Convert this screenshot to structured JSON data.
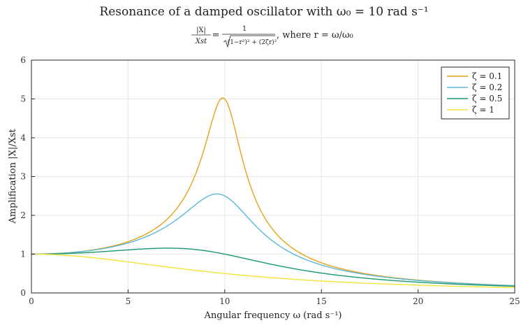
{
  "chart_data": {
    "type": "line",
    "title": "Resonance of a damped oscillator with ω₀ = 10 rad s⁻¹",
    "subtitle": {
      "lhs_num": "|X|",
      "lhs_den": "Xst",
      "rhs_num": "1",
      "rhs_den": "(1−r²)² + (2ζr)²",
      "suffix": ", where r = ω/ω₀"
    },
    "xlabel": "Angular frequency ω (rad s⁻¹)",
    "ylabel": "Amplification |X|/Xst",
    "xlim": [
      0,
      25
    ],
    "ylim": [
      0,
      6
    ],
    "xticks": [
      0,
      5,
      10,
      15,
      20,
      25
    ],
    "yticks": [
      0,
      1,
      2,
      3,
      4,
      5,
      6
    ],
    "grid": true,
    "legend_position": "top-right",
    "omega0": 10,
    "x": [
      0,
      1,
      2,
      3,
      4,
      5,
      6,
      7,
      8,
      9,
      9.5,
      10,
      11,
      12,
      13,
      14,
      15,
      16,
      18,
      20,
      22,
      25
    ],
    "series": [
      {
        "name": "ζ = 0.1",
        "zeta": 0.1,
        "color": "#E6A317",
        "values": [
          1.0,
          1.01,
          1.04,
          1.09,
          1.18,
          1.32,
          1.54,
          1.88,
          2.41,
          3.55,
          4.43,
          5.0,
          3.15,
          1.89,
          1.39,
          1.0,
          0.78,
          0.63,
          0.44,
          0.33,
          0.26,
          0.19
        ]
      },
      {
        "name": "ζ = 0.2",
        "zeta": 0.2,
        "color": "#5BB8DB",
        "values": [
          1.0,
          1.01,
          1.04,
          1.08,
          1.16,
          1.28,
          1.44,
          1.65,
          1.92,
          2.33,
          2.54,
          2.5,
          2.09,
          1.6,
          1.22,
          0.93,
          0.74,
          0.6,
          0.42,
          0.32,
          0.25,
          0.18
        ]
      },
      {
        "name": "ζ = 0.5",
        "zeta": 0.5,
        "color": "#1A9A6B",
        "values": [
          1.0,
          1.0,
          1.02,
          1.04,
          1.07,
          1.1,
          1.13,
          1.15,
          1.13,
          1.07,
          1.04,
          1.0,
          0.86,
          0.74,
          0.64,
          0.56,
          0.48,
          0.42,
          0.33,
          0.27,
          0.22,
          0.16
        ]
      },
      {
        "name": "ζ = 1",
        "zeta": 1,
        "color": "#F1E43A",
        "values": [
          1.0,
          0.99,
          0.96,
          0.92,
          0.86,
          0.8,
          0.74,
          0.67,
          0.61,
          0.55,
          0.53,
          0.5,
          0.45,
          0.41,
          0.37,
          0.34,
          0.31,
          0.28,
          0.24,
          0.2,
          0.17,
          0.14
        ]
      }
    ]
  }
}
